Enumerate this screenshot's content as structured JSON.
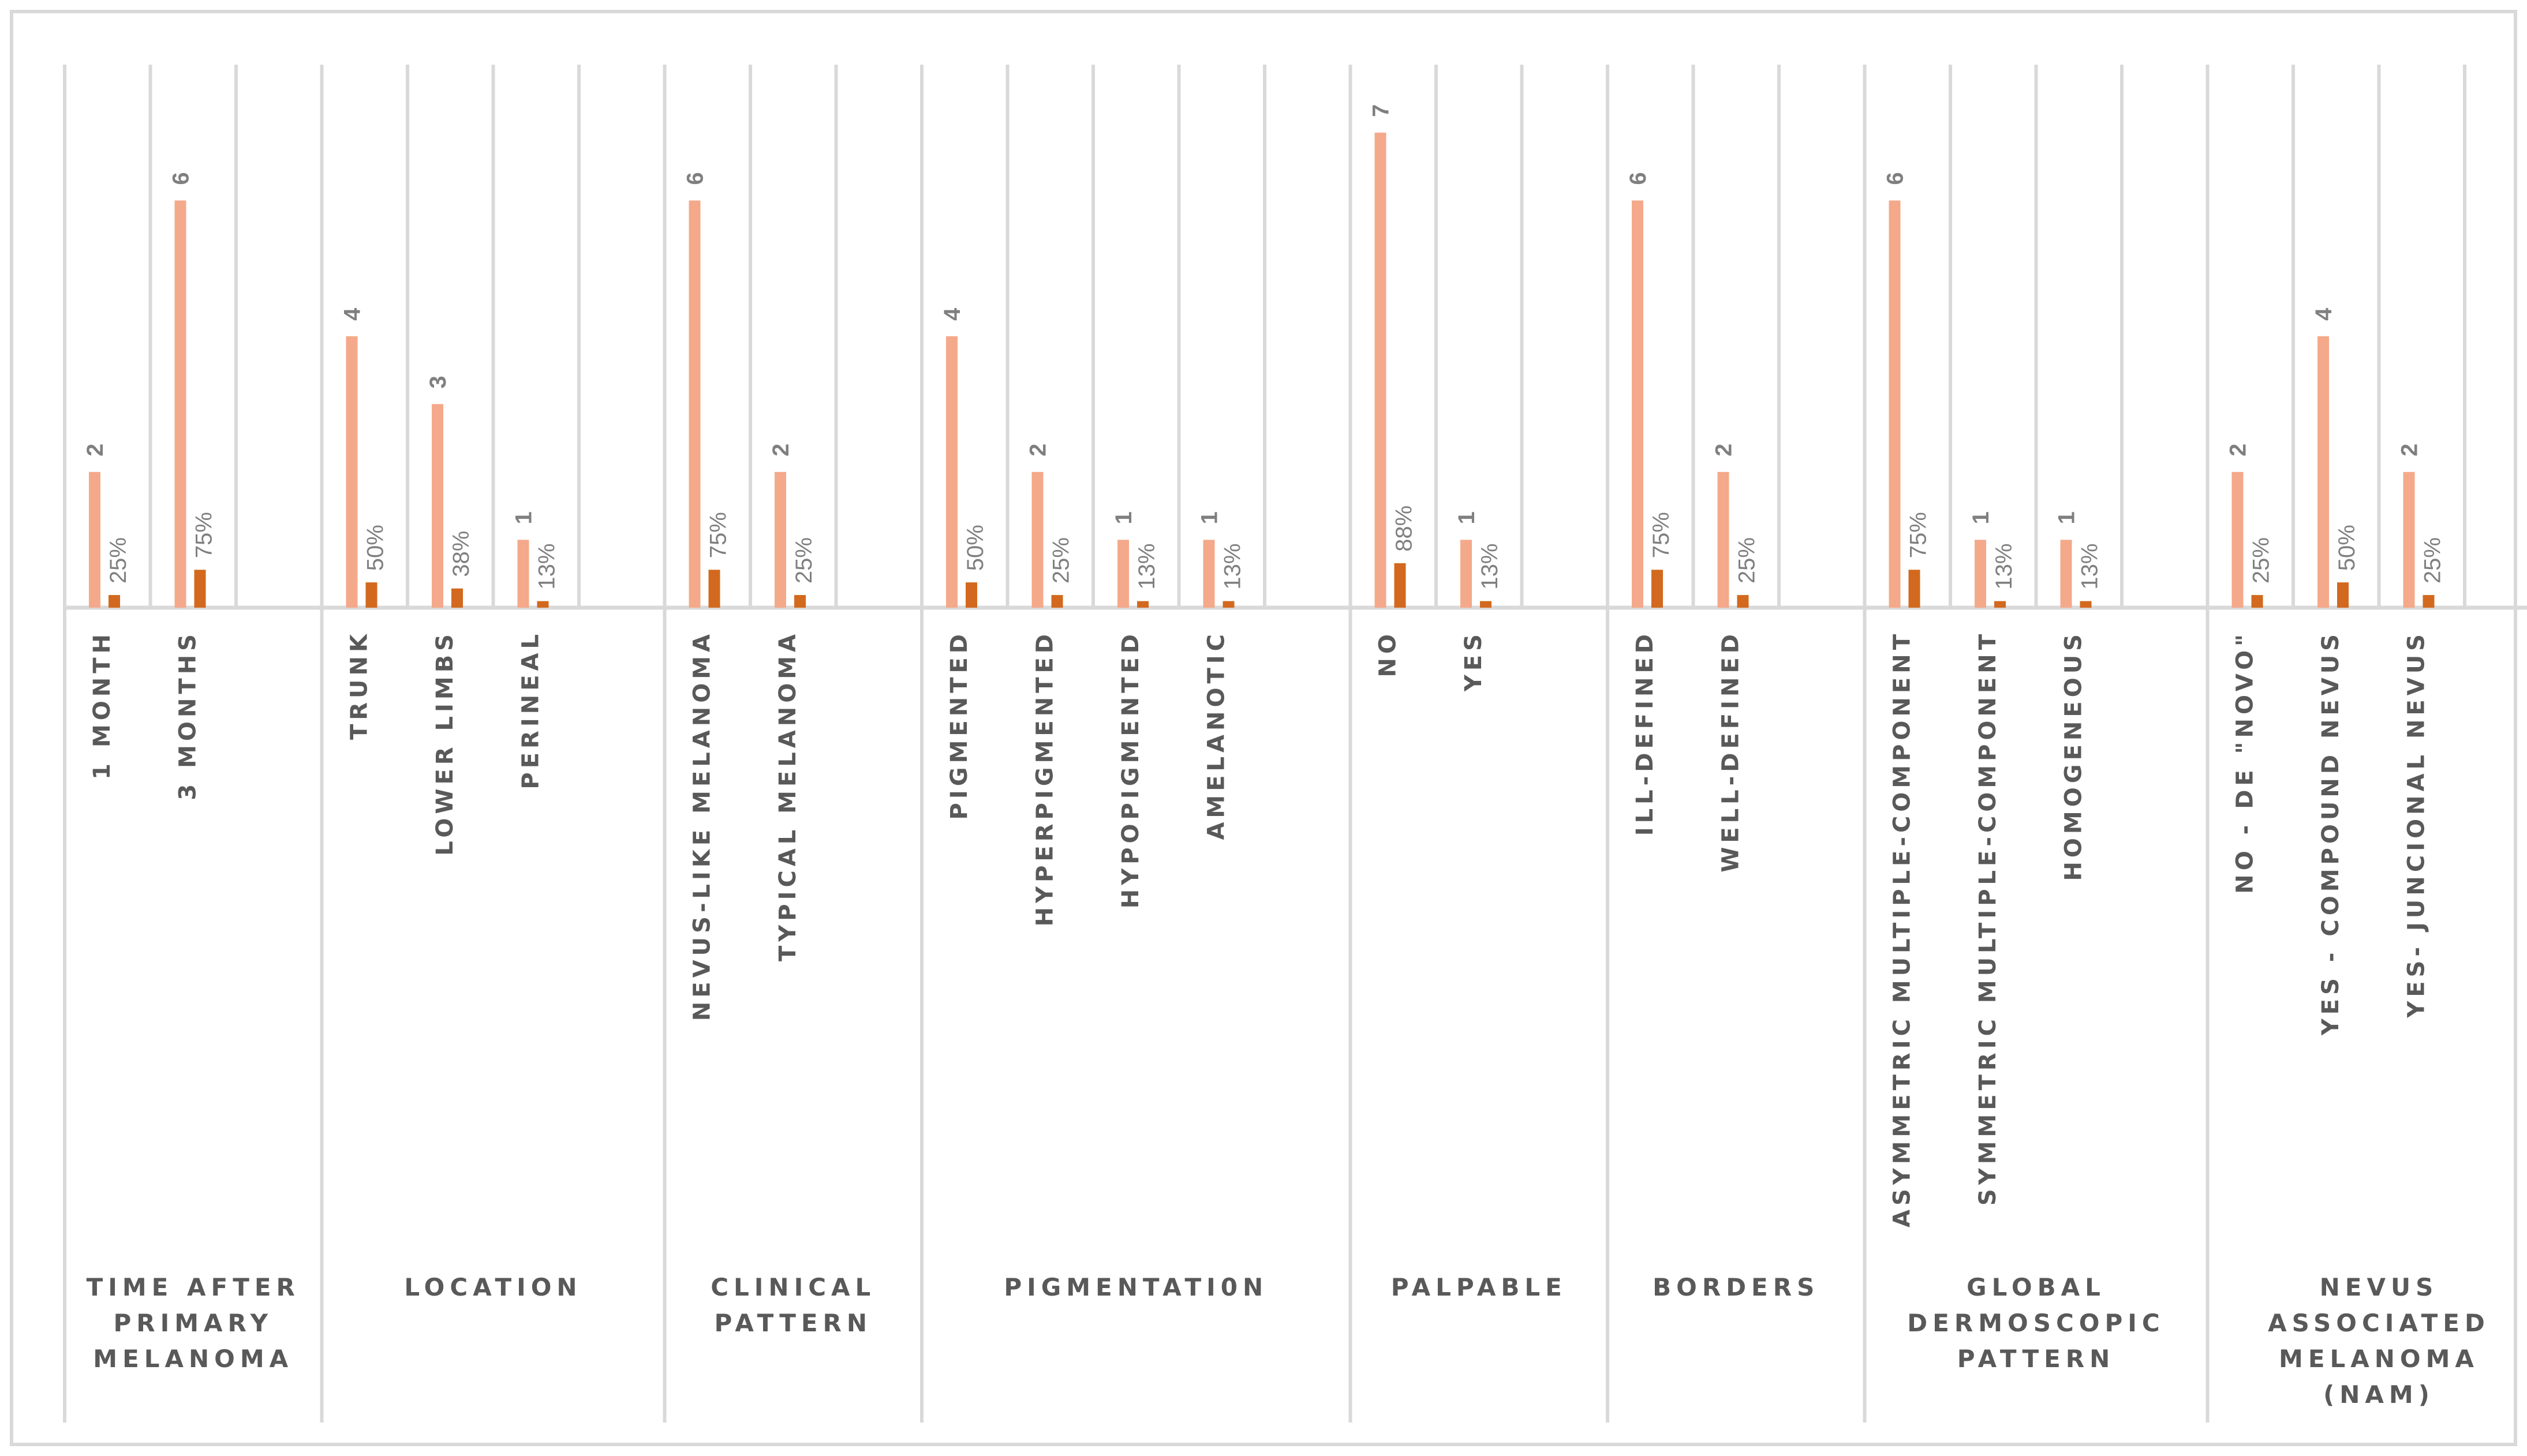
{
  "chart_data": {
    "type": "bar",
    "title": "",
    "xlabel": "",
    "ylabel": "",
    "ylim": [
      0,
      7
    ],
    "grid": false,
    "legend": "none",
    "colors": {
      "count": "#f4a98a",
      "percent": "#d2691e",
      "axis": "#d9d9d9",
      "frame": "#d9d9d9"
    },
    "groups": [
      {
        "label_lines": [
          "TIME AFTER",
          "PRIMARY",
          "MELANOMA"
        ],
        "categories": [
          {
            "label": "1 MONTH",
            "count": 2,
            "percent": 25,
            "percent_label": "25%"
          },
          {
            "label": "3 MONTHS",
            "count": 6,
            "percent": 75,
            "percent_label": "75%"
          }
        ]
      },
      {
        "label_lines": [
          "LOCATION"
        ],
        "categories": [
          {
            "label": "TRUNK",
            "count": 4,
            "percent": 50,
            "percent_label": "50%"
          },
          {
            "label": "LOWER LIMBS",
            "count": 3,
            "percent": 38,
            "percent_label": "38%"
          },
          {
            "label": "PERINEAL",
            "count": 1,
            "percent": 13,
            "percent_label": "13%"
          }
        ]
      },
      {
        "label_lines": [
          "CLINICAL",
          "PATTERN"
        ],
        "categories": [
          {
            "label": "NEVUS-LIKE MELANOMA",
            "count": 6,
            "percent": 75,
            "percent_label": "75%"
          },
          {
            "label": "TYPICAL MELANOMA",
            "count": 2,
            "percent": 25,
            "percent_label": "25%"
          }
        ]
      },
      {
        "label_lines": [
          "PIGMENTATI0N"
        ],
        "categories": [
          {
            "label": "PIGMENTED",
            "count": 4,
            "percent": 50,
            "percent_label": "50%"
          },
          {
            "label": "HYPERPIGMENTED",
            "count": 2,
            "percent": 25,
            "percent_label": "25%"
          },
          {
            "label": "HYPOPIGMENTED",
            "count": 1,
            "percent": 13,
            "percent_label": "13%"
          },
          {
            "label": "AMELANOTIC",
            "count": 1,
            "percent": 13,
            "percent_label": "13%"
          }
        ]
      },
      {
        "label_lines": [
          "PALPABLE"
        ],
        "categories": [
          {
            "label": "NO",
            "count": 7,
            "percent": 88,
            "percent_label": "88%"
          },
          {
            "label": "YES",
            "count": 1,
            "percent": 13,
            "percent_label": "13%"
          }
        ]
      },
      {
        "label_lines": [
          "BORDERS"
        ],
        "categories": [
          {
            "label": "ILL-DEFINED",
            "count": 6,
            "percent": 75,
            "percent_label": "75%"
          },
          {
            "label": "WELL-DEFINED",
            "count": 2,
            "percent": 25,
            "percent_label": "25%"
          }
        ]
      },
      {
        "label_lines": [
          "GLOBAL",
          "DERMOSCOPIC",
          "PATTERN"
        ],
        "categories": [
          {
            "label": "ASYMMETRIC MULTIPLE-COMPONENT",
            "count": 6,
            "percent": 75,
            "percent_label": "75%"
          },
          {
            "label": "SYMMETRIC MULTIPLE-COMPONENT",
            "count": 1,
            "percent": 13,
            "percent_label": "13%"
          },
          {
            "label": "HOMOGENEOUS",
            "count": 1,
            "percent": 13,
            "percent_label": "13%"
          }
        ]
      },
      {
        "label_lines": [
          "NEVUS",
          "ASSOCIATED",
          "MELANOMA",
          "(NAM)"
        ],
        "categories": [
          {
            "label": "NO - DE \"NOVO\"",
            "count": 2,
            "percent": 25,
            "percent_label": "25%"
          },
          {
            "label": "YES - COMPOUND NEVUS",
            "count": 4,
            "percent": 50,
            "percent_label": "50%"
          },
          {
            "label": "YES- JUNCIONAL NEVUS",
            "count": 2,
            "percent": 25,
            "percent_label": "25%"
          }
        ]
      }
    ]
  }
}
